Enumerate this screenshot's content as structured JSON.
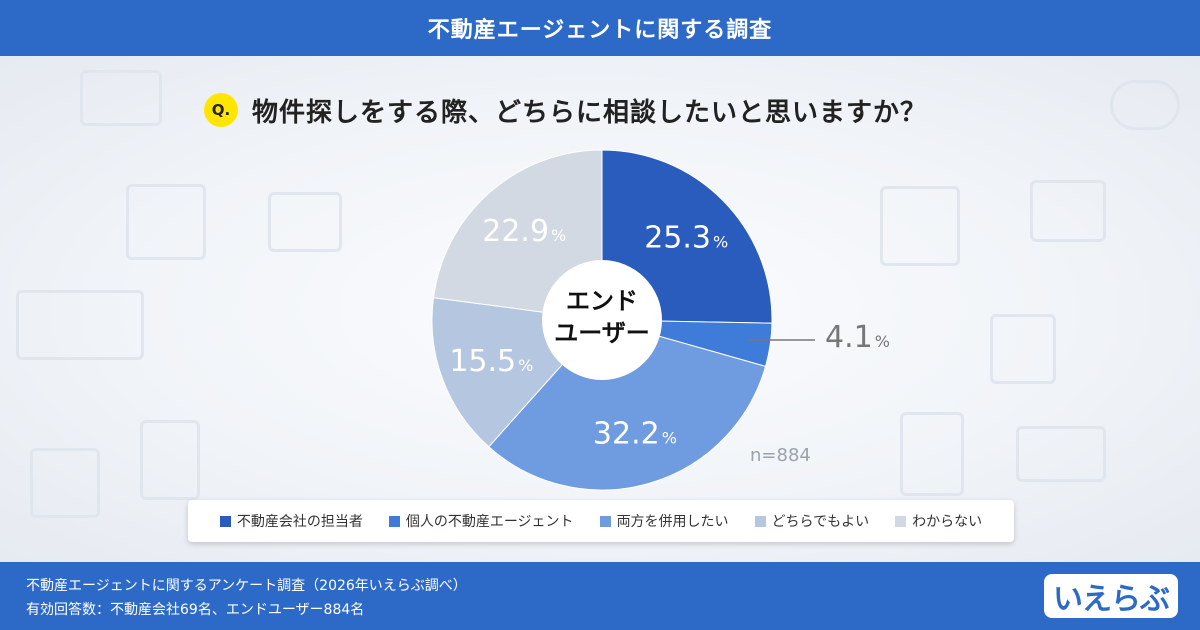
{
  "header": {
    "title": "不動産エージェントに関する調査"
  },
  "question": {
    "badge": "Q.",
    "text": "物件探しをする際、どちらに相談したいと思いますか？"
  },
  "chart_data": {
    "type": "pie",
    "center_label": [
      "エンド",
      "ユーザー"
    ],
    "n_label": "n=884",
    "unit": "%",
    "slices": [
      {
        "label": "不動産会社の担当者",
        "value": 25.3,
        "color": "#2a5cbd"
      },
      {
        "label": "個人の不動産エージェント",
        "value": 4.1,
        "color": "#3f7bd9"
      },
      {
        "label": "両方を併用したい",
        "value": 32.2,
        "color": "#6f9be0"
      },
      {
        "label": "どちらでもよい",
        "value": 15.5,
        "color": "#b4c6e0"
      },
      {
        "label": "わからない",
        "value": 22.9,
        "color": "#d3d9e2"
      }
    ],
    "value_labels": [
      "25.3",
      "4.1",
      "32.2",
      "15.5",
      "22.9"
    ]
  },
  "footer": {
    "line1": "不動産エージェントに関するアンケート調査（2026年いえらぶ調べ）",
    "line2": "有効回答数：不動産会社69名、エンドユーザー884名",
    "logo": "いえらぶ"
  }
}
